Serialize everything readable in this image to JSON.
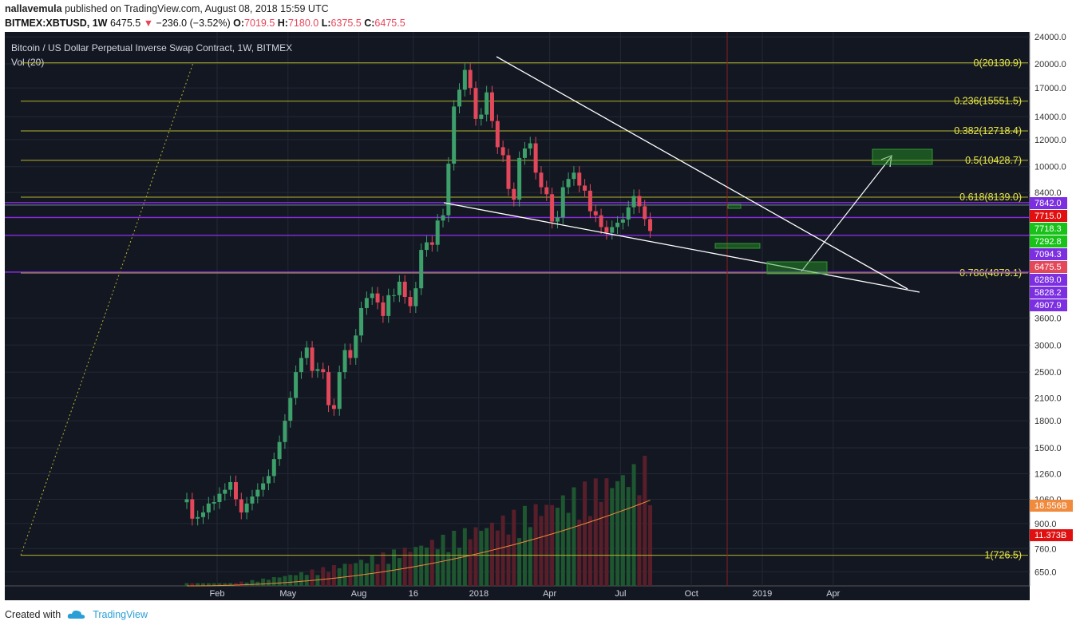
{
  "header": {
    "author": "nallavemula",
    "published_text": "published on TradingView.com, August 08, 2018 15:59 UTC",
    "symbol": "BITMEX:XBTUSD, 1W",
    "last": "6475.5",
    "change": "−236.0 (−3.52%)",
    "o_label": "O:",
    "o": "7019.5",
    "h_label": "H:",
    "h": "7180.0",
    "l_label": "L:",
    "l": "6375.5",
    "c_label": "C:",
    "c": "6475.5"
  },
  "footer": {
    "created_with": "Created with",
    "brand": "TradingView"
  },
  "colors": {
    "up": "#3da06a",
    "down": "#e2485a",
    "fib": "#b5b52a",
    "purple": "#a020f0",
    "bg": "#131722",
    "grid": "#232835",
    "trend": "#ffffff",
    "ma": "#f08a3c"
  },
  "chart_data": {
    "type": "candlestick",
    "title": "Bitcoin / US Dollar Perpetual Inverse Swap Contract, 1W, BITMEX",
    "indicator": "Vol (20)",
    "y_scale": "log",
    "ylim": [
      600,
      24000
    ],
    "y_ticks": [
      "24000.0",
      "20000.0",
      "17000.0",
      "14000.0",
      "12000.0",
      "10000.0",
      "8400.0",
      "3600.0",
      "3000.0",
      "2500.0",
      "2100.0",
      "1800.0",
      "1500.0",
      "1260.0",
      "1060.0",
      "900.0",
      "760.0",
      "650.0"
    ],
    "x_ticks": [
      {
        "label": "Feb",
        "week": 0
      },
      {
        "label": "May",
        "week": 13
      },
      {
        "label": "Aug",
        "week": 26
      },
      {
        "label": "16",
        "week": 36
      },
      {
        "label": "2018",
        "week": 48
      },
      {
        "label": "Apr",
        "week": 61
      },
      {
        "label": "Jul",
        "week": 74
      },
      {
        "label": "Oct",
        "week": 87
      },
      {
        "label": "2019",
        "week": 100
      },
      {
        "label": "Apr",
        "week": 113
      }
    ],
    "candles_close": [
      1060,
      930,
      940,
      970,
      1030,
      1040,
      1100,
      1130,
      1190,
      1060,
      970,
      1030,
      1080,
      1130,
      1180,
      1240,
      1390,
      1560,
      1800,
      2100,
      2500,
      2750,
      2950,
      2520,
      2550,
      2500,
      2000,
      1950,
      2500,
      2900,
      2750,
      3200,
      3850,
      4120,
      4250,
      4000,
      3650,
      4200,
      4200,
      4600,
      4150,
      3900,
      4400,
      5700,
      6000,
      5900,
      6950,
      7200,
      10200,
      15000,
      16800,
      19200,
      17000,
      13800,
      14200,
      16500,
      13600,
      11400,
      10800,
      8600,
      8000,
      10600,
      11300,
      11700,
      9600,
      8700,
      8300,
      6900,
      7100,
      8700,
      9200,
      9600,
      8800,
      8500,
      7400,
      7200,
      6650,
      6400,
      6650,
      6850,
      7000,
      7600,
      8200,
      7650,
      7019,
      6475
    ],
    "fib_levels": [
      {
        "label": "0(20130.9)",
        "price": 20130.9
      },
      {
        "label": "0.236(15551.5)",
        "price": 15551.5
      },
      {
        "label": "0.382(12718.4)",
        "price": 12718.4
      },
      {
        "label": "0.5(10428.7)",
        "price": 10428.7
      },
      {
        "label": "0.618(8139.0)",
        "price": 8139.0
      },
      {
        "label": "0.786(4879.1)",
        "price": 4879.1
      },
      {
        "label": "1(726.5)",
        "price": 726.5
      }
    ],
    "price_tags": [
      {
        "text": "7842.0",
        "color": "#7b2fe0",
        "price": 7842
      },
      {
        "text": "7715.0",
        "color": "#e01010",
        "price": 7715
      },
      {
        "text": "7718.3",
        "color": "#19c219",
        "price": 7718.3
      },
      {
        "text": "7292.8",
        "color": "#19c219",
        "price": 7292.8
      },
      {
        "text": "7094.3",
        "color": "#7b2fe0",
        "price": 7094.3
      },
      {
        "text": "6475.5",
        "color": "#e2485a",
        "price": 6475.5
      },
      {
        "text": "6289.0",
        "color": "#7b2fe0",
        "price": 6289
      },
      {
        "text": "5828.2",
        "color": "#7b2fe0",
        "price": 5828.2
      },
      {
        "text": "4907.9",
        "color": "#7b2fe0",
        "price": 4907.9
      }
    ],
    "volume_tags": [
      {
        "text": "18.556B",
        "color": "#f08a3c"
      },
      {
        "text": "11.373B",
        "color": "#e01010"
      }
    ]
  }
}
